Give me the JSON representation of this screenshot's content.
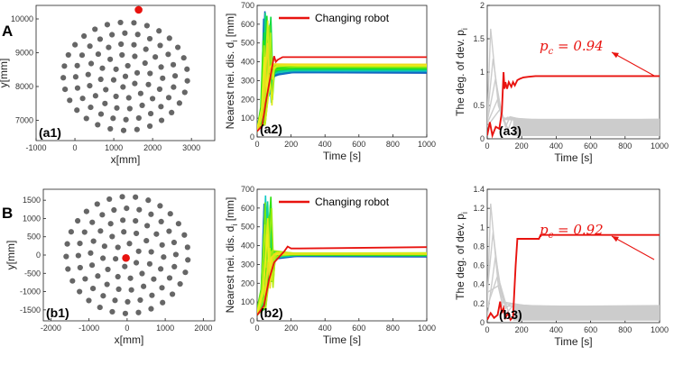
{
  "rows": [
    {
      "label": "A",
      "scatter": {
        "panel_label": "(a1)",
        "xlabel": "x[mm]",
        "ylabel": "y[mm]",
        "xticks": [
          -1000,
          0,
          1000,
          2000,
          3000
        ],
        "yticks": [
          7000,
          8000,
          9000,
          10000
        ],
        "xlim": [
          -1000,
          3600
        ],
        "ylim": [
          6400,
          10400
        ],
        "center": [
          1300,
          8300
        ],
        "radius": 1850,
        "changing_robot": [
          1640,
          10270
        ]
      },
      "distance": {
        "panel_label": "(a2)",
        "xlabel": "Time [s]",
        "ylabel": "Nearest nei. dis. d",
        "ylabel_sub": "i",
        "ylabel_unit": "[mm]",
        "xticks": [
          0,
          200,
          400,
          600,
          800,
          1000
        ],
        "yticks": [
          0,
          100,
          200,
          300,
          400,
          500,
          600,
          700
        ],
        "xlim": [
          0,
          1000
        ],
        "ylim": [
          0,
          700
        ],
        "legend": "Changing  robot",
        "red_series": [
          [
            0,
            30
          ],
          [
            30,
            60
          ],
          [
            50,
            180
          ],
          [
            70,
            280
          ],
          [
            90,
            380
          ],
          [
            100,
            430
          ],
          [
            110,
            400
          ],
          [
            120,
            410
          ],
          [
            150,
            425
          ],
          [
            300,
            425
          ],
          [
            1000,
            425
          ]
        ]
      },
      "degree": {
        "panel_label": "(a3)",
        "xlabel": "Time [s]",
        "ylabel": "The deg. of dev. p",
        "ylabel_sub": "i",
        "xticks": [
          0,
          200,
          400,
          600,
          800,
          1000
        ],
        "yticks": [
          0,
          0.5,
          1,
          1.5,
          2
        ],
        "ytick_labels": [
          "0",
          "0.5",
          "1",
          "1.5",
          "2"
        ],
        "xlim": [
          0,
          1000
        ],
        "ylim": [
          0,
          2
        ],
        "pc_label": "0.94",
        "red_series": [
          [
            0,
            0.05
          ],
          [
            15,
            0.25
          ],
          [
            30,
            0.05
          ],
          [
            50,
            0.18
          ],
          [
            70,
            0.15
          ],
          [
            85,
            0.4
          ],
          [
            95,
            1.0
          ],
          [
            100,
            0.75
          ],
          [
            105,
            0.85
          ],
          [
            115,
            0.75
          ],
          [
            125,
            0.85
          ],
          [
            140,
            0.78
          ],
          [
            150,
            0.85
          ],
          [
            160,
            0.8
          ],
          [
            175,
            0.88
          ],
          [
            190,
            0.9
          ],
          [
            210,
            0.92
          ],
          [
            240,
            0.93
          ],
          [
            280,
            0.94
          ],
          [
            1000,
            0.94
          ]
        ]
      }
    },
    {
      "label": "B",
      "scatter": {
        "panel_label": "(b1)",
        "xlabel": "x[mm]",
        "ylabel": "y[mm]",
        "xticks": [
          -2000,
          -1000,
          0,
          1000,
          2000
        ],
        "yticks": [
          -1500,
          -1000,
          -500,
          0,
          500,
          1000,
          1500
        ],
        "xlim": [
          -2200,
          2300
        ],
        "ylim": [
          -1800,
          1800
        ],
        "center": [
          0,
          0
        ],
        "radius": 1850,
        "changing_robot": [
          -30,
          -80
        ]
      },
      "distance": {
        "panel_label": "(b2)",
        "xlabel": "Time [s]",
        "ylabel": "Nearest nei. dis. d",
        "ylabel_sub": "i",
        "ylabel_unit": "[mm]",
        "xticks": [
          0,
          200,
          400,
          600,
          800,
          1000
        ],
        "yticks": [
          0,
          100,
          200,
          300,
          400,
          500,
          600,
          700
        ],
        "xlim": [
          0,
          1000
        ],
        "ylim": [
          0,
          700
        ],
        "legend": "Changing  robot",
        "red_series": [
          [
            0,
            30
          ],
          [
            40,
            80
          ],
          [
            70,
            220
          ],
          [
            100,
            310
          ],
          [
            130,
            340
          ],
          [
            160,
            370
          ],
          [
            180,
            395
          ],
          [
            200,
            385
          ],
          [
            250,
            385
          ],
          [
            1000,
            392
          ]
        ]
      },
      "degree": {
        "panel_label": "(b3)",
        "xlabel": "Time [s]",
        "ylabel": "The deg. of dev. p",
        "ylabel_sub": "i",
        "xticks": [
          0,
          200,
          400,
          600,
          800,
          1000
        ],
        "yticks": [
          0,
          0.2,
          0.4,
          0.6,
          0.8,
          1,
          1.2,
          1.4
        ],
        "ytick_labels": [
          "0",
          "0.2",
          "0.4",
          "0.6",
          "0.8",
          "1",
          "1.2",
          "1.4"
        ],
        "xlim": [
          0,
          1000
        ],
        "ylim": [
          0,
          1.4
        ],
        "pc_label": "0.92",
        "red_series": [
          [
            0,
            0.03
          ],
          [
            20,
            0.1
          ],
          [
            40,
            0.05
          ],
          [
            60,
            0.08
          ],
          [
            75,
            0.22
          ],
          [
            85,
            0.1
          ],
          [
            95,
            0.15
          ],
          [
            105,
            0.05
          ],
          [
            120,
            0.1
          ],
          [
            135,
            0.03
          ],
          [
            150,
            0.06
          ],
          [
            165,
            0.6
          ],
          [
            175,
            0.88
          ],
          [
            200,
            0.88
          ],
          [
            300,
            0.88
          ],
          [
            310,
            0.92
          ],
          [
            1000,
            0.92
          ]
        ]
      }
    }
  ],
  "pc_symbol": "p",
  "pc_sub": "c",
  "colors": {
    "robot": "#666666",
    "changing": "#e8130f",
    "others": "#cccccc",
    "axis": "#222222"
  }
}
